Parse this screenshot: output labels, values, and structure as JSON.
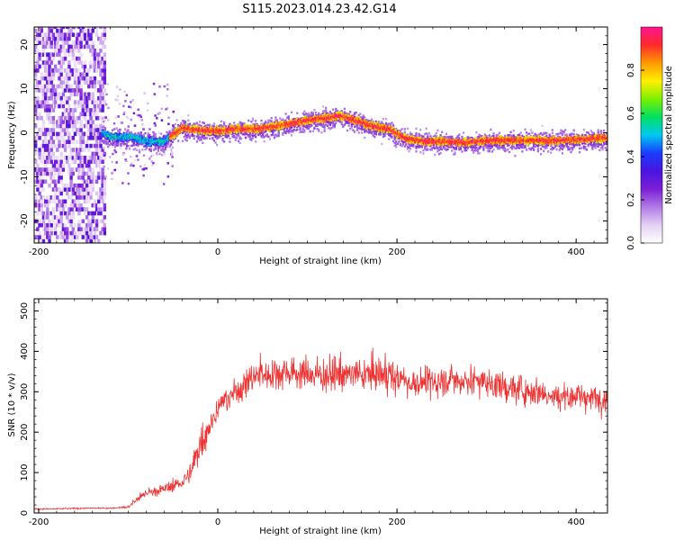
{
  "title": "S115.2023.014.23.42.G14",
  "colors": {
    "signal": "#ee3333",
    "frame": "#000000",
    "colormap": [
      "#ffffff",
      "#e3d0f4",
      "#b07ae6",
      "#7b1fd6",
      "#4a14e0",
      "#1a3cff",
      "#00c8f0",
      "#00e060",
      "#7cf000",
      "#ffef00",
      "#ff9a00",
      "#ff2a2a",
      "#ff1493"
    ]
  },
  "chart_data": [
    {
      "type": "heatmap",
      "xlabel": "Height of straight line (km)",
      "ylabel": "Frequency (Hz)",
      "xlim": [
        -205,
        435
      ],
      "ylim": [
        -25,
        24
      ],
      "xticks": [
        -200,
        0,
        200,
        400
      ],
      "yticks": [
        -20,
        -10,
        0,
        10,
        20
      ],
      "colorbar": {
        "label": "Normalized spectral amplitude",
        "range": [
          0.0,
          1.0
        ],
        "ticks": [
          0.0,
          0.2,
          0.4,
          0.6,
          0.8
        ]
      },
      "ridge": {
        "x": [
          -130,
          -120,
          -100,
          -80,
          -60,
          -55,
          -40,
          -20,
          0,
          20,
          40,
          60,
          80,
          100,
          120,
          135,
          150,
          170,
          190,
          210,
          230,
          250,
          270,
          290,
          310,
          340,
          370,
          400,
          435
        ],
        "y": [
          0.0,
          -1.0,
          -1.0,
          -2.0,
          -2.0,
          -1.0,
          1.0,
          0.5,
          0.3,
          0.8,
          0.8,
          1.3,
          2.0,
          2.8,
          3.2,
          3.8,
          3.0,
          1.5,
          0.8,
          -1.5,
          -2.0,
          -2.0,
          -2.3,
          -2.0,
          -1.8,
          -1.8,
          -1.8,
          -1.6,
          -1.2
        ]
      }
    },
    {
      "type": "line",
      "xlabel": "Height of straight line (km)",
      "ylabel": "SNR (10 * v/v)",
      "xlim": [
        -205,
        435
      ],
      "ylim": [
        0,
        530
      ],
      "xticks": [
        -200,
        0,
        200,
        400
      ],
      "yticks": [
        0,
        100,
        200,
        300,
        400,
        500
      ],
      "series": [
        {
          "x": [
            -205,
            -180,
            -150,
            -120,
            -100,
            -90,
            -80,
            -60,
            -40,
            -30,
            -20,
            -10,
            0,
            10,
            20,
            30,
            40,
            60,
            80,
            100,
            120,
            140,
            160,
            180,
            200,
            220,
            240,
            260,
            280,
            300,
            320,
            340,
            360,
            380,
            400,
            420,
            435
          ],
          "y": [
            10,
            10,
            12,
            12,
            15,
            35,
            50,
            60,
            75,
            100,
            170,
            210,
            260,
            280,
            300,
            320,
            340,
            345,
            350,
            345,
            340,
            345,
            340,
            345,
            335,
            320,
            325,
            330,
            330,
            325,
            310,
            305,
            300,
            290,
            290,
            285,
            285
          ]
        }
      ]
    }
  ]
}
